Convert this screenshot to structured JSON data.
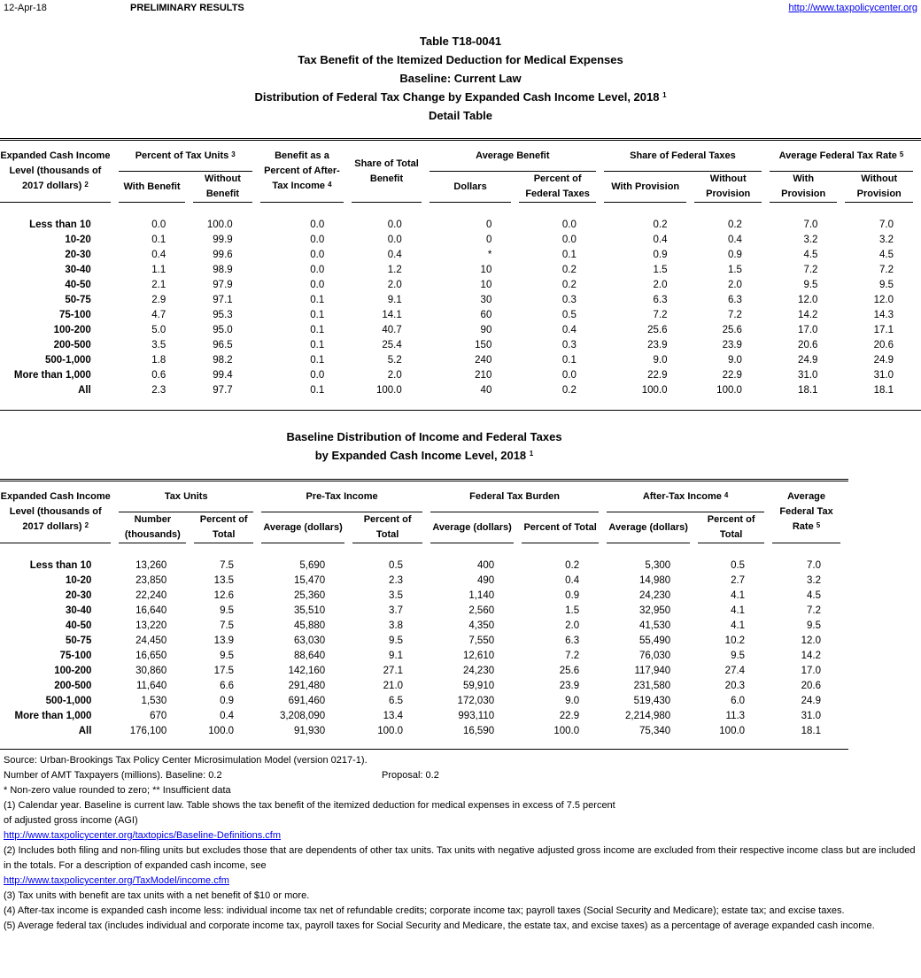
{
  "header": {
    "date": "12-Apr-18",
    "status": "PRELIMINARY RESULTS",
    "url": "http://www.taxpolicycenter.org"
  },
  "titles": {
    "t1": "Table T18-0041",
    "t2": "Tax Benefit of the Itemized Deduction for Medical Expenses",
    "t3": "Baseline: Current Law",
    "t4": "Distribution of Federal Tax Change by Expanded Cash Income Level, 2018",
    "t4_sup": "1",
    "t5": "Detail Table"
  },
  "table1": {
    "headers": {
      "income_level": "Expanded Cash Income Level (thousands of 2017 dollars)",
      "income_level_sup": "2",
      "pct_units": "Percent of Tax Units",
      "pct_units_sup": "3",
      "with_benefit": "With Benefit",
      "without_benefit": "Without Benefit",
      "benefit_pct": "Benefit as a Percent of After-Tax Income",
      "benefit_pct_sup": "4",
      "share_total": "Share of Total Benefit",
      "avg_benefit": "Average Benefit",
      "dollars": "Dollars",
      "pct_fed": "Percent of Federal Taxes",
      "share_fed": "Share of Federal Taxes",
      "with_prov": "With Provision",
      "without_prov": "Without Provision",
      "aftr": "Average Federal Tax Rate",
      "aftr_sup": "5",
      "with_prov2": "With Provision",
      "without_prov2": "Without Provision"
    },
    "rows": [
      [
        "Less than 10",
        "0.0",
        "100.0",
        "0.0",
        "0.0",
        "0",
        "0.0",
        "0.2",
        "0.2",
        "7.0",
        "7.0"
      ],
      [
        "10-20",
        "0.1",
        "99.9",
        "0.0",
        "0.0",
        "0",
        "0.0",
        "0.4",
        "0.4",
        "3.2",
        "3.2"
      ],
      [
        "20-30",
        "0.4",
        "99.6",
        "0.0",
        "0.4",
        "*",
        "0.1",
        "0.9",
        "0.9",
        "4.5",
        "4.5"
      ],
      [
        "30-40",
        "1.1",
        "98.9",
        "0.0",
        "1.2",
        "10",
        "0.2",
        "1.5",
        "1.5",
        "7.2",
        "7.2"
      ],
      [
        "40-50",
        "2.1",
        "97.9",
        "0.0",
        "2.0",
        "10",
        "0.2",
        "2.0",
        "2.0",
        "9.5",
        "9.5"
      ],
      [
        "50-75",
        "2.9",
        "97.1",
        "0.1",
        "9.1",
        "30",
        "0.3",
        "6.3",
        "6.3",
        "12.0",
        "12.0"
      ],
      [
        "75-100",
        "4.7",
        "95.3",
        "0.1",
        "14.1",
        "60",
        "0.5",
        "7.2",
        "7.2",
        "14.2",
        "14.3"
      ],
      [
        "100-200",
        "5.0",
        "95.0",
        "0.1",
        "40.7",
        "90",
        "0.4",
        "25.6",
        "25.6",
        "17.0",
        "17.1"
      ],
      [
        "200-500",
        "3.5",
        "96.5",
        "0.1",
        "25.4",
        "150",
        "0.3",
        "23.9",
        "23.9",
        "20.6",
        "20.6"
      ],
      [
        "500-1,000",
        "1.8",
        "98.2",
        "0.1",
        "5.2",
        "240",
        "0.1",
        "9.0",
        "9.0",
        "24.9",
        "24.9"
      ],
      [
        "More than 1,000",
        "0.6",
        "99.4",
        "0.0",
        "2.0",
        "210",
        "0.0",
        "22.9",
        "22.9",
        "31.0",
        "31.0"
      ],
      [
        "All",
        "2.3",
        "97.7",
        "0.1",
        "100.0",
        "40",
        "0.2",
        "100.0",
        "100.0",
        "18.1",
        "18.1"
      ]
    ]
  },
  "titles2": {
    "t1": "Baseline Distribution of Income and Federal Taxes",
    "t2": "by Expanded Cash Income Level, 2018",
    "t2_sup": "1"
  },
  "table2": {
    "headers": {
      "income_level": "Expanded Cash Income Level (thousands of 2017 dollars)",
      "income_level_sup": "2",
      "tax_units": "Tax Units",
      "number": "Number (thousands)",
      "pct_total1": "Percent of Total",
      "pretax": "Pre-Tax Income",
      "avg1": "Average (dollars)",
      "pct_total2": "Percent of Total",
      "burden": "Federal Tax Burden",
      "avg2": "Average (dollars)",
      "pct_total3": "Percent of Total",
      "aftertax": "After-Tax Income",
      "aftertax_sup": "4",
      "avg3": "Average (dollars)",
      "pct_total4": "Percent of Total",
      "aftr": "Average Federal Tax Rate",
      "aftr_sup": "5"
    },
    "rows": [
      [
        "Less than 10",
        "13,260",
        "7.5",
        "5,690",
        "0.5",
        "400",
        "0.2",
        "5,300",
        "0.5",
        "7.0"
      ],
      [
        "10-20",
        "23,850",
        "13.5",
        "15,470",
        "2.3",
        "490",
        "0.4",
        "14,980",
        "2.7",
        "3.2"
      ],
      [
        "20-30",
        "22,240",
        "12.6",
        "25,360",
        "3.5",
        "1,140",
        "0.9",
        "24,230",
        "4.1",
        "4.5"
      ],
      [
        "30-40",
        "16,640",
        "9.5",
        "35,510",
        "3.7",
        "2,560",
        "1.5",
        "32,950",
        "4.1",
        "7.2"
      ],
      [
        "40-50",
        "13,220",
        "7.5",
        "45,880",
        "3.8",
        "4,350",
        "2.0",
        "41,530",
        "4.1",
        "9.5"
      ],
      [
        "50-75",
        "24,450",
        "13.9",
        "63,030",
        "9.5",
        "7,550",
        "6.3",
        "55,490",
        "10.2",
        "12.0"
      ],
      [
        "75-100",
        "16,650",
        "9.5",
        "88,640",
        "9.1",
        "12,610",
        "7.2",
        "76,030",
        "9.5",
        "14.2"
      ],
      [
        "100-200",
        "30,860",
        "17.5",
        "142,160",
        "27.1",
        "24,230",
        "25.6",
        "117,940",
        "27.4",
        "17.0"
      ],
      [
        "200-500",
        "11,640",
        "6.6",
        "291,480",
        "21.0",
        "59,910",
        "23.9",
        "231,580",
        "20.3",
        "20.6"
      ],
      [
        "500-1,000",
        "1,530",
        "0.9",
        "691,460",
        "6.5",
        "172,030",
        "9.0",
        "519,430",
        "6.0",
        "24.9"
      ],
      [
        "More than 1,000",
        "670",
        "0.4",
        "3,208,090",
        "13.4",
        "993,110",
        "22.9",
        "2,214,980",
        "11.3",
        "31.0"
      ],
      [
        "All",
        "176,100",
        "100.0",
        "91,930",
        "100.0",
        "16,590",
        "100.0",
        "75,340",
        "100.0",
        "18.1"
      ]
    ]
  },
  "footer": {
    "source": "Source: Urban-Brookings Tax Policy Center Microsimulation Model (version 0217-1).",
    "amt": "Number of AMT Taxpayers (millions).  Baseline: 0.2",
    "amt_proposal": "Proposal: 0.2",
    "legend": "* Non-zero value rounded to zero; ** Insufficient data",
    "n1a": "(1) Calendar year. Baseline is current law. Table shows the tax benefit of the itemized deduction for medical expenses in excess of 7.5 percent",
    "n1b": "of adjusted gross income (AGI)",
    "n1_link": "http://www.taxpolicycenter.org/taxtopics/Baseline-Definitions.cfm",
    "n2": "(2) Includes both filing and non-filing units but excludes those that are dependents of other tax units. Tax units with negative adjusted gross income are excluded from their respective income class but are included in the totals. For a description of expanded cash income, see",
    "n2_link": "http://www.taxpolicycenter.org/TaxModel/income.cfm",
    "n3": "(3) Tax units with benefit are tax units with a net benefit of $10 or more.",
    "n4": "(4) After-tax income is expanded cash income less: individual income tax net of refundable credits; corporate income tax; payroll taxes (Social Security and Medicare); estate tax; and excise taxes.",
    "n5": "(5) Average federal tax (includes individual and corporate income tax, payroll taxes for Social Security and Medicare, the estate tax, and excise taxes) as a percentage of average expanded cash income."
  }
}
